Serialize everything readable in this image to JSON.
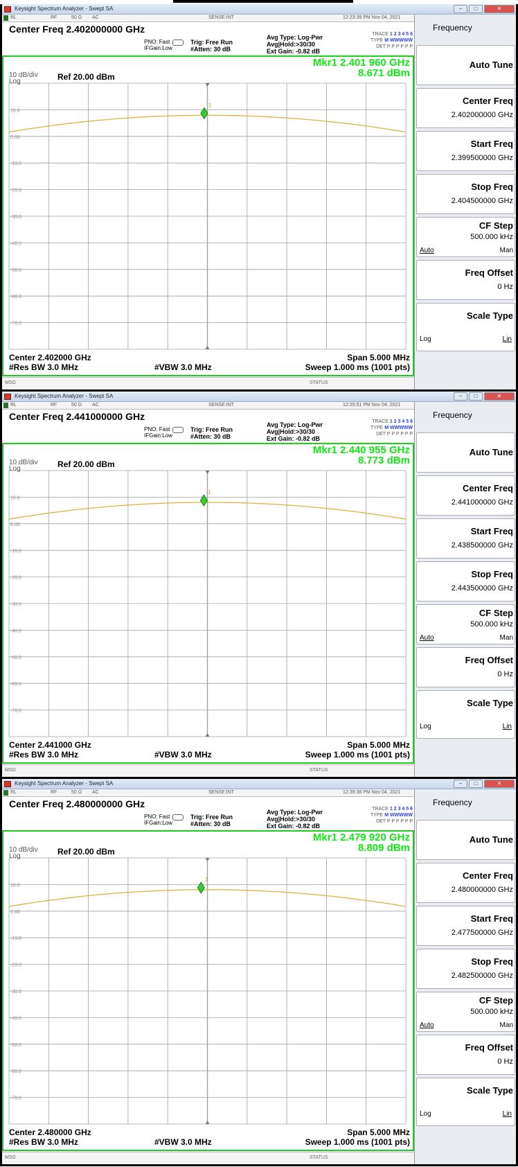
{
  "app_title": "Keysight Spectrum Analyzer - Swept SA",
  "status": {
    "rl": "RL",
    "rf": "RF",
    "ohm": "50 Ω",
    "ac": "AC",
    "sense": "SENSE:INT"
  },
  "settings": {
    "pno": "PNO: Fast",
    "ifgain": "IFGain:Low",
    "trig": "Trig: Free Run",
    "atten": "#Atten: 30 dB",
    "avg_type": "Avg Type: Log-Pwr",
    "avg_hold": "Avg|Hold:>30/30",
    "ext_gain": "Ext Gain: -0.82 dB",
    "trace_label": "TRACE",
    "trace_value": "1 2 3 4 5 6",
    "type_label": "TYPE",
    "type_value": "M WWWWW",
    "det_label": "DET",
    "det_value": "P P P P P P"
  },
  "display": {
    "scale": "10 dB/div",
    "scale_type": "Log",
    "ref": "Ref 20.00 dBm",
    "res_bw": "#Res BW 3.0 MHz",
    "vbw": "#VBW 3.0 MHz",
    "sweep": "Sweep  1.000 ms (1001 pts)",
    "span": "Span 5.000 MHz",
    "y_ticks": [
      "10.0",
      "0.00",
      "-10.0",
      "-20.0",
      "-30.0",
      "-40.0",
      "-50.0",
      "-60.0",
      "-70.0"
    ]
  },
  "msgbar": {
    "msg": "MSG",
    "status": "STATUS"
  },
  "softkeys": {
    "title": "Frequency",
    "auto_tune": "Auto Tune",
    "center": "Center Freq",
    "start": "Start Freq",
    "stop": "Stop Freq",
    "cf_step": "CF Step",
    "cf_step_value": "500.000 kHz",
    "auto": "Auto",
    "man": "Man",
    "offset": "Freq Offset",
    "offset_value": "0 Hz",
    "scale_type": "Scale Type",
    "log": "Log",
    "lin": "Lin"
  },
  "colors": {
    "marker_text": "#12e812",
    "trace": "#e0b040",
    "grid": "#a0a0a0",
    "frame": "#1ccf1c"
  },
  "screens": [
    {
      "time": "12:23:39 PM Nov 04, 2021",
      "center_title": "Center Freq 2.402000000 GHz",
      "center_short": "Center 2.402000 GHz",
      "mkr_label": "Mkr1 2.401 960 GHz",
      "mkr_level": "8.671 dBm",
      "marker_number": "1",
      "marker_freq_ghz": 2.40196,
      "marker_level_dbm": 8.671,
      "center_freq_ghz": 2.402,
      "center_value": "2.402000000 GHz",
      "start_value": "2.399500000 GHz",
      "stop_value": "2.404500000 GHz"
    },
    {
      "time": "12:25:51 PM Nov 04, 2021",
      "center_title": "Center Freq 2.441000000 GHz",
      "center_short": "Center 2.441000 GHz",
      "mkr_label": "Mkr1 2.440 955 GHz",
      "mkr_level": "8.773 dBm",
      "marker_number": "1",
      "marker_freq_ghz": 2.440955,
      "marker_level_dbm": 8.773,
      "center_freq_ghz": 2.441,
      "center_value": "2.441000000 GHz",
      "start_value": "2.438500000 GHz",
      "stop_value": "2.443500000 GHz"
    },
    {
      "time": "12:39:38 PM Nov 04, 2021",
      "center_title": "Center Freq 2.480000000 GHz",
      "center_short": "Center 2.480000 GHz",
      "mkr_label": "Mkr1 2.479 920 GHz",
      "mkr_level": "8.809 dBm",
      "marker_number": "1",
      "marker_freq_ghz": 2.47992,
      "marker_level_dbm": 8.809,
      "center_freq_ghz": 2.48,
      "center_value": "2.480000000 GHz",
      "start_value": "2.477500000 GHz",
      "stop_value": "2.482500000 GHz"
    }
  ]
}
